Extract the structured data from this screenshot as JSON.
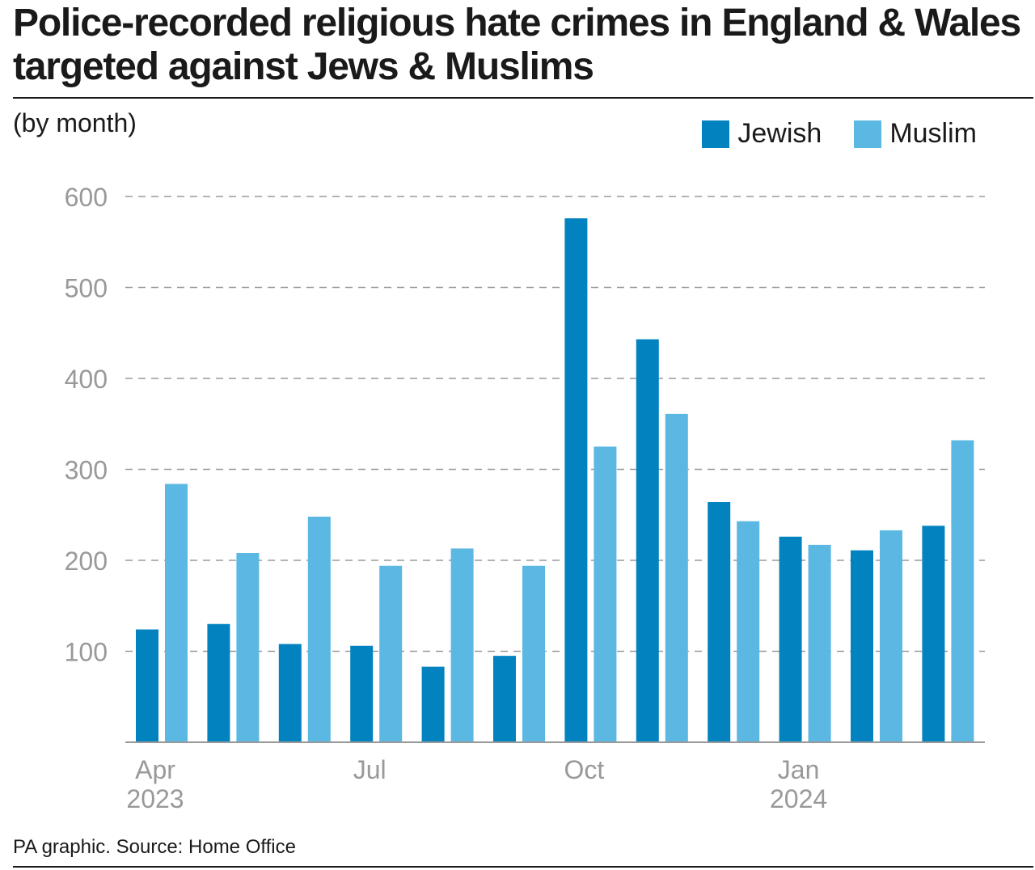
{
  "header": {
    "title": "Police-recorded religious hate crimes in England & Wales targeted against Jews & Muslims",
    "subtitle": "(by month)"
  },
  "footer": {
    "source": "PA graphic. Source: Home Office"
  },
  "colors": {
    "jewish": "#0283c0",
    "muslim": "#5bb8e2",
    "grid": "#9a9a9a",
    "axis": "#999999"
  },
  "chart_data": {
    "type": "bar",
    "title": "Police-recorded religious hate crimes in England & Wales targeted against Jews & Muslims",
    "subtitle": "(by month)",
    "xlabel": "",
    "ylabel": "",
    "ylim": [
      0,
      600
    ],
    "yticks": [
      100,
      200,
      300,
      400,
      500,
      600
    ],
    "grid": true,
    "legend_position": "top-right",
    "categories": [
      "Apr 2023",
      "May 2023",
      "Jun 2023",
      "Jul 2023",
      "Aug 2023",
      "Sep 2023",
      "Oct 2023",
      "Nov 2023",
      "Dec 2023",
      "Jan 2024",
      "Feb 2024",
      "Mar 2024"
    ],
    "x_tick_labels": [
      {
        "category_index": 0,
        "line1": "Apr",
        "line2": "2023"
      },
      {
        "category_index": 3,
        "line1": "Jul",
        "line2": ""
      },
      {
        "category_index": 6,
        "line1": "Oct",
        "line2": ""
      },
      {
        "category_index": 9,
        "line1": "Jan",
        "line2": "2024"
      }
    ],
    "series": [
      {
        "name": "Jewish",
        "color": "#0283c0",
        "values": [
          124,
          130,
          108,
          106,
          83,
          95,
          576,
          443,
          264,
          226,
          211,
          238
        ]
      },
      {
        "name": "Muslim",
        "color": "#5bb8e2",
        "values": [
          284,
          208,
          248,
          194,
          213,
          194,
          325,
          361,
          243,
          217,
          233,
          332
        ]
      }
    ]
  }
}
